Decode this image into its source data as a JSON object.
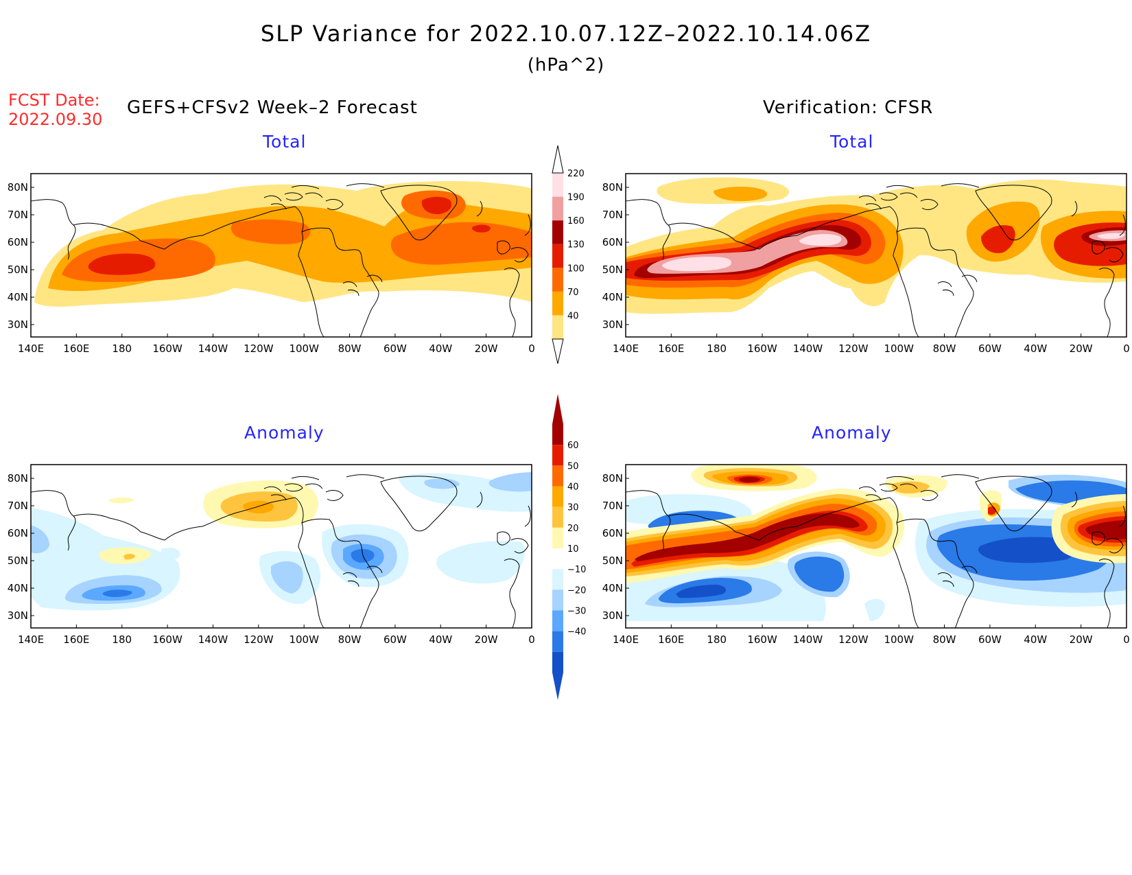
{
  "header": {
    "title": "SLP Variance for 2022.10.07.12Z–2022.10.14.06Z",
    "units": "(hPa^2)",
    "fcst_label": "FCST Date:",
    "fcst_date": "2022.09.30",
    "left_column": "GEFS+CFSv2 Week–2 Forecast",
    "right_column": "Verification: CFSR"
  },
  "panels": {
    "fcst_total": "Total",
    "verif_total": "Total",
    "fcst_anomaly": "Anomaly",
    "verif_anomaly": "Anomaly"
  },
  "axes": {
    "lon_ticks": [
      "140E",
      "160E",
      "180",
      "160W",
      "140W",
      "120W",
      "100W",
      "80W",
      "60W",
      "40W",
      "20W",
      "0"
    ],
    "lat_ticks": [
      "80N",
      "70N",
      "60N",
      "50N",
      "40N",
      "30N"
    ]
  },
  "colorbars": {
    "total": {
      "levels": [
        "40",
        "70",
        "100",
        "130",
        "160",
        "190",
        "220"
      ],
      "colors": [
        "#ffe683",
        "#ffa800",
        "#ff6a00",
        "#e61c00",
        "#a30000",
        "#f0a0a0",
        "#ffe0e6"
      ]
    },
    "anomaly": {
      "levels": [
        "60",
        "50",
        "40",
        "30",
        "20",
        "10",
        "−10",
        "−20",
        "−30",
        "−40"
      ],
      "colors": [
        "#a30000",
        "#e61c00",
        "#ff6a00",
        "#ffa800",
        "#ffc43d",
        "#fff8b0",
        "#ffffff",
        "#d9f5ff",
        "#a6d3ff",
        "#5aa8ff",
        "#2a7ae8",
        "#1450c8"
      ]
    }
  }
}
